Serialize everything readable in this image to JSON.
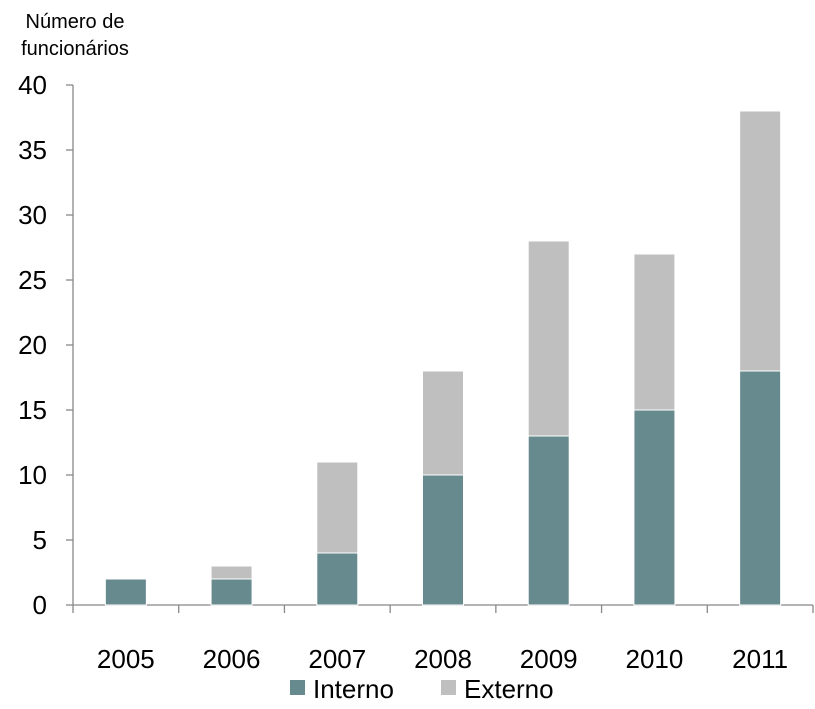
{
  "chart_data": {
    "type": "bar",
    "stacked": true,
    "title": "",
    "xlabel": "",
    "ylabel": "Número de funcionários",
    "ylabel_lines": [
      "Número de",
      "funcionários"
    ],
    "ylim": [
      0,
      40
    ],
    "yticks": [
      0,
      5,
      10,
      15,
      20,
      25,
      30,
      35,
      40
    ],
    "grid": false,
    "legend_position": "bottom",
    "categories": [
      "2005",
      "2006",
      "2007",
      "2008",
      "2009",
      "2010",
      "2011"
    ],
    "series": [
      {
        "name": "Interno",
        "color": "#678A8F",
        "values": [
          2,
          2,
          4,
          10,
          13,
          15,
          18
        ]
      },
      {
        "name": "Externo",
        "color": "#BFBFBF",
        "values": [
          0,
          1,
          7,
          8,
          15,
          12,
          20
        ]
      }
    ]
  }
}
